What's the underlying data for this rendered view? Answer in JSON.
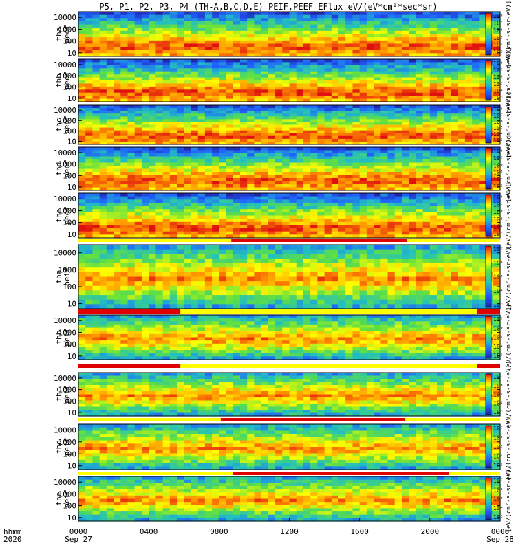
{
  "chart_data": {
    "type": "heatmap",
    "title": "P5, P1, P2, P3, P4 (TH-A,B,C,D,E) PEIF,PEEF EFlux eV/(eV*cm²*sec*sr)",
    "date_start": "Sep 27",
    "date_end": "Sep 28",
    "time_label": "hhmm",
    "year_label": "2020",
    "x_ticks": [
      "0000",
      "0400",
      "0800",
      "1200",
      "1600",
      "2000",
      "0000"
    ],
    "x_range_hours": [
      0,
      24
    ],
    "y_scale": "log",
    "y_ylim_eV": [
      5,
      30000
    ],
    "colorbar_label": "[eV/(cm²-s-sr-eV)]",
    "colors": {
      "low": "#2020a0",
      "mid": "#22c0c0",
      "high": "#ffff00",
      "max": "#e01010",
      "bar_yellow": "#ffff00",
      "bar_red": "#e00000",
      "background": "#ffffff"
    },
    "panels": [
      {
        "probe": "tha",
        "product": "peef",
        "label1": "tha",
        "label2": "peef",
        "y_ticks": [
          "10000",
          "1000",
          "100",
          "10"
        ],
        "cbar_ticks": [
          "10⁸",
          "10⁷",
          "10⁶",
          "10⁵",
          "10⁴",
          "10³"
        ],
        "type": "electron"
      },
      {
        "probe": "thb",
        "product": "peef",
        "label1": "thb",
        "label2": "peef",
        "y_ticks": [
          "10000",
          "1000",
          "100",
          "10"
        ],
        "cbar_ticks": [
          "10⁸",
          "10⁷",
          "10⁶",
          "10⁵",
          "10⁴",
          "10³"
        ],
        "type": "electron"
      },
      {
        "probe": "thc",
        "product": "peef",
        "label1": "thc",
        "label2": "peef",
        "y_ticks": [
          "10000",
          "1000",
          "100",
          "10"
        ],
        "cbar_ticks": [
          "10⁸",
          "10⁷",
          "10⁶",
          "10⁵",
          "10⁴",
          "10³"
        ],
        "type": "electron"
      },
      {
        "probe": "thd",
        "product": "peef",
        "label1": "thd",
        "label2": "peef",
        "y_ticks": [
          "10000",
          "1000",
          "100",
          "10"
        ],
        "cbar_ticks": [
          "10⁸",
          "10⁷",
          "10⁶",
          "10⁵",
          "10⁴",
          "10³"
        ],
        "type": "electron"
      },
      {
        "probe": "the",
        "product": "peef",
        "label1": "the",
        "label2": "peef",
        "y_ticks": [
          "10000",
          "1000",
          "100",
          "10"
        ],
        "cbar_ticks": [
          "10⁸",
          "10⁷",
          "10⁶",
          "10⁵",
          "10⁴",
          "10³"
        ],
        "type": "electron"
      },
      {
        "probe": "tha",
        "product": "peif",
        "label1": "tha",
        "label2": "peif",
        "y_ticks": [
          "10000",
          "1000",
          "100",
          "10"
        ],
        "cbar_ticks": [
          "10⁷",
          "10⁶",
          "10⁵",
          "10⁴",
          "10³"
        ],
        "type": "ion"
      },
      {
        "probe": "thb",
        "product": "peif",
        "label1": "thb",
        "label2": "peif",
        "y_ticks": [
          "10000",
          "1000",
          "100",
          "10"
        ],
        "cbar_ticks": [
          "10⁷",
          "10⁶",
          "10⁵",
          "10⁴",
          "10³"
        ],
        "type": "ion"
      },
      {
        "probe": "thc",
        "product": "peif",
        "label1": "thc",
        "label2": "peif",
        "y_ticks": [
          "10000",
          "1000",
          "100",
          "10"
        ],
        "cbar_ticks": [
          "10⁷",
          "10⁶",
          "10⁵",
          "10⁴",
          "10³"
        ],
        "type": "ion"
      },
      {
        "probe": "thd",
        "product": "peif",
        "label1": "thd",
        "label2": "peif",
        "y_ticks": [
          "10000",
          "1000",
          "100",
          "10"
        ],
        "cbar_ticks": [
          "10⁷",
          "10⁶",
          "10⁵",
          "10⁴",
          "10³"
        ],
        "type": "ion"
      },
      {
        "probe": "the",
        "product": "peif",
        "label1": "the",
        "label2": "peif",
        "y_ticks": [
          "10000",
          "1000",
          "100",
          "10"
        ],
        "cbar_ticks": [
          "10⁷",
          "10⁶",
          "10⁵",
          "10⁴",
          "10³"
        ],
        "type": "ion"
      }
    ],
    "mode_bars": [
      {
        "after_panel": 5,
        "red_intervals_hours": [
          [
            8.7,
            18.7
          ]
        ]
      },
      {
        "after_panel": 6,
        "red_intervals_hours": [
          [
            0,
            5.8
          ],
          [
            22.7,
            24
          ]
        ]
      },
      {
        "after_panel": 7,
        "red_intervals_hours": [
          [
            0,
            5.8
          ],
          [
            22.7,
            24
          ]
        ]
      },
      {
        "after_panel": 8,
        "red_intervals_hours": [
          [
            8.1,
            18.6
          ]
        ]
      },
      {
        "after_panel": 9,
        "red_intervals_hours": [
          [
            8.8,
            21.1
          ]
        ]
      }
    ]
  }
}
